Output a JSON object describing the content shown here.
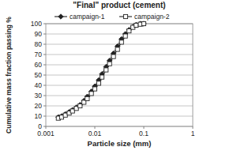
{
  "chart_data": {
    "type": "line",
    "title": "\"Final\" product (cement)",
    "xlabel": "Particle size (mm)",
    "ylabel": "Cumulative mass fraction passing %",
    "log": "x",
    "grid": true,
    "legend": "top",
    "x": [
      0.0018,
      0.0021,
      0.0025,
      0.003,
      0.0035,
      0.0042,
      0.005,
      0.006,
      0.007,
      0.0085,
      0.01,
      0.012,
      0.014,
      0.017,
      0.02,
      0.024,
      0.029,
      0.035,
      0.042,
      0.05,
      0.06,
      0.07,
      0.085,
      0.1
    ],
    "series": [
      {
        "name": "campaign-1",
        "color": "#222222",
        "marker": "diamond",
        "line_style": "solid",
        "values": [
          9,
          10,
          12,
          14,
          16,
          18.5,
          21,
          25,
          29,
          34,
          39,
          45,
          51,
          58,
          64,
          71,
          78,
          85,
          90,
          94,
          97,
          99,
          100,
          100
        ]
      },
      {
        "name": "campaign-2",
        "color": "#222222",
        "marker": "square-open",
        "line_style": "solid",
        "values": [
          8,
          9,
          11,
          13,
          15,
          17.5,
          20,
          23.5,
          27,
          32,
          36.5,
          42,
          48,
          55,
          61,
          68,
          75,
          82,
          88,
          93,
          96.5,
          98.5,
          99.5,
          100
        ]
      }
    ],
    "xlim": [
      0.001,
      1
    ],
    "xticks": [
      0.001,
      0.01,
      0.1,
      1
    ],
    "ylim": [
      0,
      100
    ],
    "yticks": [
      0,
      10,
      20,
      30,
      40,
      50,
      60,
      70,
      80,
      90,
      100
    ]
  }
}
